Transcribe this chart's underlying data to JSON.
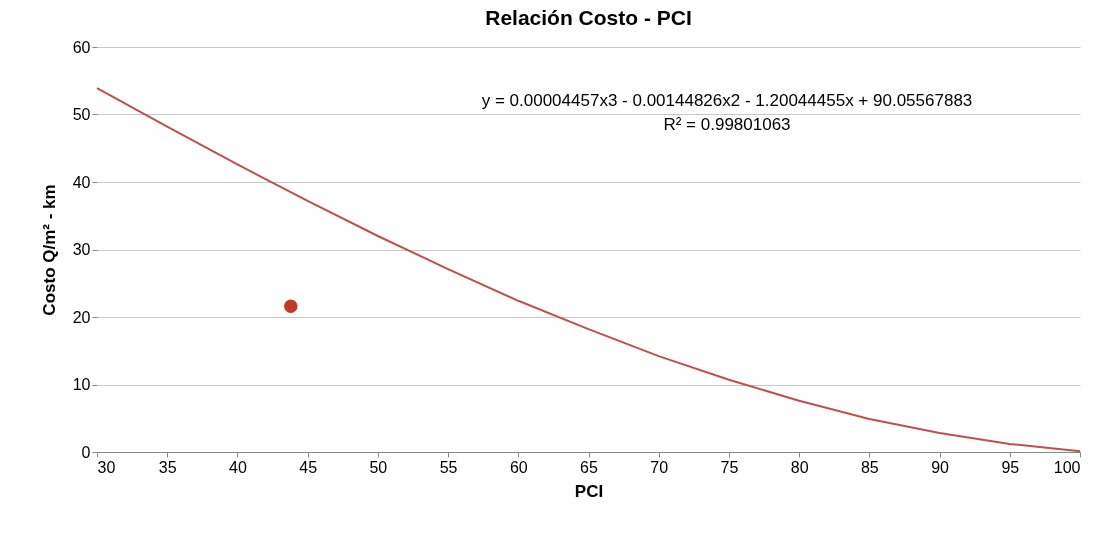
{
  "chart_data": {
    "type": "scatter",
    "title": "Relación Costo - PCI",
    "xlabel": "PCI",
    "ylabel": "Costo Q/m² - km",
    "xlim": [
      30,
      100
    ],
    "xticks": [
      30,
      35,
      40,
      45,
      50,
      55,
      60,
      65,
      70,
      75,
      80,
      85,
      90,
      95,
      100
    ],
    "ylim": [
      0,
      60
    ],
    "yticks": [
      0,
      10,
      20,
      30,
      40,
      50,
      60
    ],
    "grid": "y",
    "marker": "circle",
    "series": [
      {
        "color": "#c0392b",
        "x": [
          43.8
        ],
        "values": [
          21.6
        ]
      },
      {
        "type": "line",
        "marker": "none",
        "color": "#c0504d",
        "line_style": "solid",
        "x": [
          30,
          35,
          40,
          45,
          50,
          55,
          60,
          65,
          70,
          75,
          80,
          85,
          90,
          95,
          100
        ],
        "values": [
          53.9,
          48.2,
          42.6,
          37.2,
          32.0,
          27.1,
          22.4,
          18.2,
          14.2,
          10.7,
          7.6,
          4.9,
          2.8,
          1.2,
          0.1
        ]
      }
    ],
    "annotations": [
      "y = 0.00004457x3 - 0.00144826x2 - 1.20044455x + 90.05567883",
      "R² = 0.99801063"
    ]
  }
}
